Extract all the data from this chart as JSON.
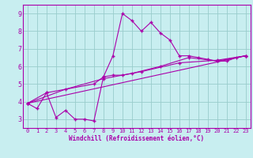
{
  "xlabel": "Windchill (Refroidissement éolien,°C)",
  "bg_color": "#c8eef0",
  "line_color": "#aa00aa",
  "grid_color": "#99cccc",
  "spine_color": "#aa00aa",
  "xlim": [
    -0.5,
    23.5
  ],
  "ylim": [
    2.5,
    9.5
  ],
  "xticks": [
    0,
    1,
    2,
    3,
    4,
    5,
    6,
    7,
    8,
    9,
    10,
    11,
    12,
    13,
    14,
    15,
    16,
    17,
    18,
    19,
    20,
    21,
    22,
    23
  ],
  "yticks": [
    3,
    4,
    5,
    6,
    7,
    8,
    9
  ],
  "series1_x": [
    0,
    1,
    2,
    3,
    4,
    5,
    6,
    7,
    8,
    9,
    10,
    11,
    12,
    13,
    14,
    15,
    16,
    17,
    18,
    19,
    20,
    21,
    22,
    23
  ],
  "series1_y": [
    3.9,
    3.6,
    4.5,
    3.1,
    3.5,
    3.0,
    3.0,
    2.9,
    5.4,
    6.6,
    9.0,
    8.6,
    8.0,
    8.5,
    7.9,
    7.5,
    6.6,
    6.6,
    6.5,
    6.4,
    6.3,
    6.3,
    6.5,
    6.6
  ],
  "series2_x": [
    0,
    2,
    7,
    8,
    9,
    10,
    11,
    14,
    17,
    20,
    23
  ],
  "series2_y": [
    3.9,
    4.5,
    5.0,
    5.4,
    5.5,
    5.5,
    5.6,
    6.0,
    6.5,
    6.3,
    6.6
  ],
  "series3_x": [
    0,
    23
  ],
  "series3_y": [
    3.9,
    6.6
  ],
  "series4_x": [
    0,
    4,
    8,
    12,
    16,
    20,
    23
  ],
  "series4_y": [
    3.9,
    4.7,
    5.3,
    5.7,
    6.2,
    6.35,
    6.6
  ]
}
